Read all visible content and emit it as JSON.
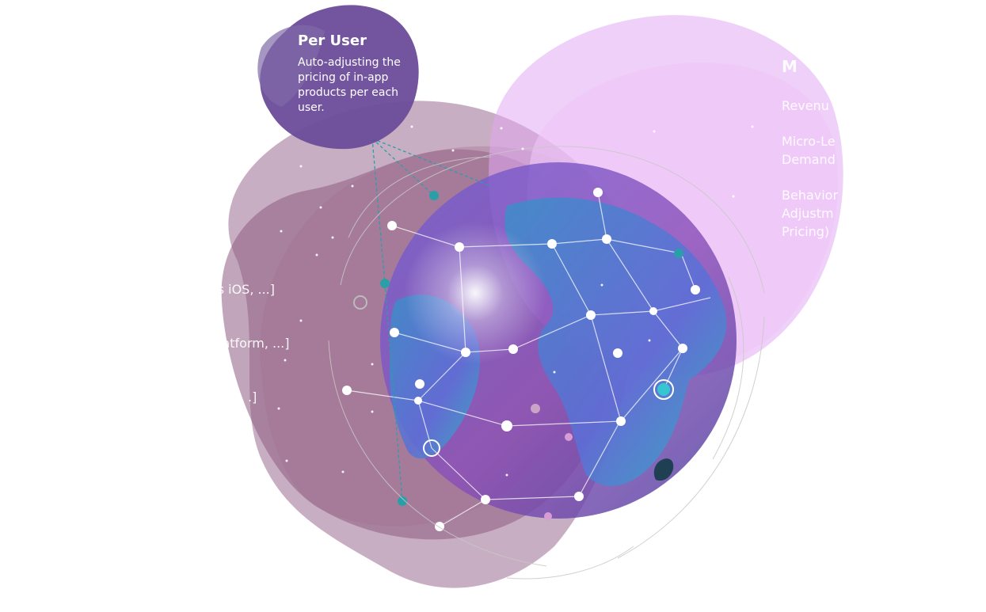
{
  "per_user": {
    "title": "Per User",
    "description": "Auto-adjusting the pricing of in-app products per each user."
  },
  "right_panel": {
    "title": "M",
    "items": [
      "Revenu",
      "Micro-Le",
      "Demand",
      "Behavior",
      "Adjustm",
      "Pricing)"
    ]
  },
  "left_panel": {
    "lines": [
      "d vs iOS, ...]",
      "latform, ...]",
      ".]"
    ]
  },
  "colors": {
    "per_user_blob": "#6b4c9a",
    "mauve_blob": "#9b6b8f",
    "pink_blob": "#e9b6f5",
    "globe_ocean": "#5a6fd0",
    "teal_node": "#2a9fa8"
  }
}
